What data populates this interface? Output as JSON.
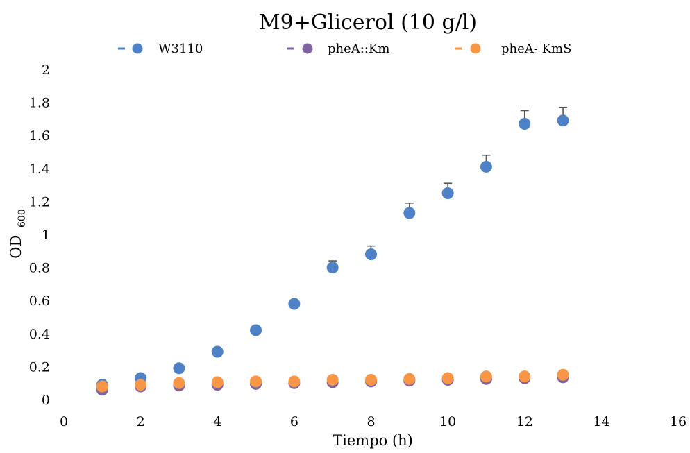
{
  "chart_data": {
    "type": "scatter",
    "title": "M9+Glicerol (10 g/l)",
    "xlabel": "Tiempo (h)",
    "ylabel": "OD",
    "ylabel_sub": "600",
    "xlim": [
      0,
      16
    ],
    "ylim": [
      0,
      2
    ],
    "xticks": [
      "0",
      "2",
      "4",
      "6",
      "8",
      "10",
      "12",
      "14",
      "16"
    ],
    "yticks": [
      "0",
      "0.2",
      "0.4",
      "0.6",
      "0.8",
      "1",
      "1.2",
      "1.4",
      "1.6",
      "1.8",
      "2"
    ],
    "grid": false,
    "legend_position": "top",
    "series": [
      {
        "name": "W3110",
        "color": "#4F81C7",
        "x": [
          1,
          2,
          3,
          4,
          5,
          6,
          7,
          8,
          9,
          10,
          11,
          12,
          13
        ],
        "y": [
          0.09,
          0.13,
          0.19,
          0.29,
          0.42,
          0.58,
          0.8,
          0.88,
          1.13,
          1.25,
          1.41,
          1.67,
          1.69
        ],
        "err": [
          0.01,
          0.01,
          0.01,
          0.01,
          0.01,
          0.02,
          0.04,
          0.05,
          0.06,
          0.06,
          0.07,
          0.08,
          0.08
        ]
      },
      {
        "name": "pheA::Km",
        "color": "#8064A2",
        "x": [
          1,
          2,
          3,
          4,
          5,
          6,
          7,
          8,
          9,
          10,
          11,
          12,
          13
        ],
        "y": [
          0.06,
          0.08,
          0.085,
          0.09,
          0.095,
          0.1,
          0.105,
          0.11,
          0.115,
          0.12,
          0.125,
          0.13,
          0.135
        ],
        "err": [
          0,
          0,
          0,
          0,
          0,
          0,
          0,
          0,
          0,
          0,
          0,
          0,
          0
        ]
      },
      {
        "name": "pheA- KmS",
        "color": "#F79646",
        "x": [
          1,
          2,
          3,
          4,
          5,
          6,
          7,
          8,
          9,
          10,
          11,
          12,
          13
        ],
        "y": [
          0.08,
          0.09,
          0.1,
          0.105,
          0.11,
          0.11,
          0.12,
          0.12,
          0.125,
          0.13,
          0.14,
          0.14,
          0.15
        ],
        "err": [
          0,
          0,
          0,
          0,
          0,
          0,
          0,
          0,
          0,
          0,
          0,
          0,
          0
        ]
      }
    ]
  }
}
